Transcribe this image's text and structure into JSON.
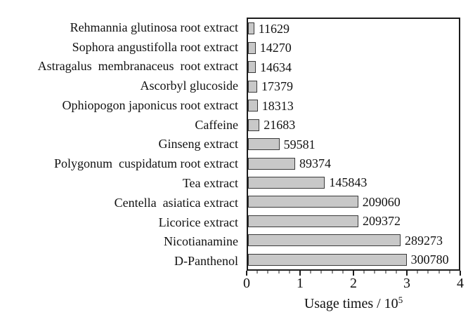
{
  "figure": {
    "background": "#ffffff",
    "text_color": "#111111",
    "frame_color": "#1c1c1c",
    "bar_fill": "#c8c8c8",
    "bar_border": "#3a3a3a"
  },
  "chart_data": {
    "type": "bar",
    "orientation": "horizontal",
    "title": "",
    "xlabel": "Usage times / 10^5",
    "xlabel_main": "Usage times / 10",
    "xlabel_superscript": "5",
    "categories": [
      "Rehmannia glutinosa root extract",
      "Sophora angustifolla root extract",
      "Astragalus  membranaceus  root extract",
      "Ascorbyl glucoside",
      "Ophiopogon japonicus root extract",
      "Caffeine",
      "Ginseng extract",
      "Polygonum  cuspidatum root extract",
      "Tea extract",
      "Centella  asiatica extract",
      "Licorice extract",
      "Nicotianamine",
      "D-Panthenol"
    ],
    "values": [
      11629,
      14270,
      14634,
      17379,
      18313,
      21683,
      59581,
      89374,
      145843,
      209060,
      209372,
      289273,
      300780
    ],
    "value_labels": [
      "11629",
      "14270",
      "14634",
      "17379",
      "18313",
      "21683",
      "59581",
      "89374",
      "145843",
      "209060",
      "209372",
      "289273",
      "300780"
    ],
    "xlim": [
      0,
      400000
    ],
    "xtick_labels": [
      "0",
      "1",
      "2",
      "3",
      "4"
    ],
    "xtick_unit": 100000,
    "minor_tick_step": 20000,
    "grid": false,
    "legend": false
  }
}
